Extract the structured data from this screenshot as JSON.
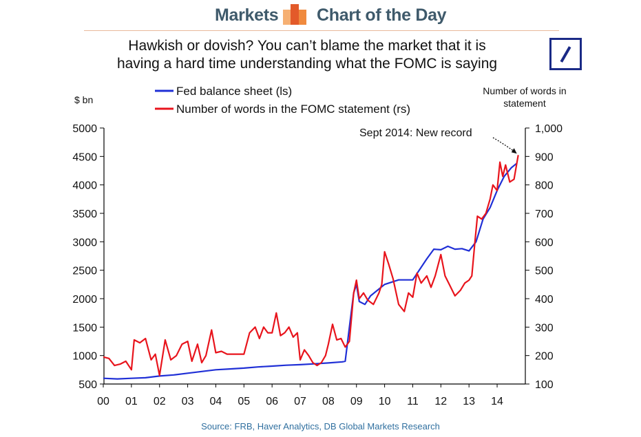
{
  "header": {
    "left_label": "Markets",
    "right_label": "Chart of the Day",
    "logo_icon": "bar-chart-icon",
    "logo_colors": [
      "#f6b073",
      "#e35a2a",
      "#f08a3e"
    ]
  },
  "chart_data": {
    "type": "line",
    "title_lines": [
      "Hawkish or dovish? You can’t blame the market that it is",
      "having a hard time understanding what the FOMC is saying"
    ],
    "source": "Source: FRB, Haver Analytics, DB Global Markets Research",
    "left_axis": {
      "label": "$ bn",
      "range": [
        500,
        5000
      ],
      "ticks": [
        "5000",
        "4500",
        "4000",
        "3500",
        "3000",
        "2500",
        "2000",
        "1500",
        "1000",
        "500"
      ]
    },
    "right_axis": {
      "label_lines": [
        "Number of words in",
        "statement"
      ],
      "range": [
        100,
        1000
      ],
      "ticks": [
        "1,000",
        "900",
        "800",
        "700",
        "600",
        "500",
        "400",
        "300",
        "200",
        "100"
      ]
    },
    "x_axis": {
      "range": [
        2000,
        2015
      ],
      "ticks": [
        "00",
        "01",
        "02",
        "03",
        "04",
        "05",
        "06",
        "07",
        "08",
        "09",
        "10",
        "11",
        "12",
        "13",
        "14"
      ]
    },
    "legend": [
      "Fed balance sheet (ls)",
      "Number of words in the FOMC statement (rs)"
    ],
    "annotation": "Sept 2014: New record",
    "series": [
      {
        "name": "Fed balance sheet (ls)",
        "axis": "left",
        "color": "#1f2fd6",
        "points": [
          [
            2000.0,
            600
          ],
          [
            2000.5,
            590
          ],
          [
            2001.0,
            600
          ],
          [
            2001.5,
            610
          ],
          [
            2002.0,
            640
          ],
          [
            2002.5,
            660
          ],
          [
            2003.0,
            690
          ],
          [
            2003.5,
            720
          ],
          [
            2004.0,
            750
          ],
          [
            2004.5,
            765
          ],
          [
            2005.0,
            780
          ],
          [
            2005.5,
            800
          ],
          [
            2006.0,
            815
          ],
          [
            2006.5,
            830
          ],
          [
            2007.0,
            840
          ],
          [
            2007.5,
            855
          ],
          [
            2008.0,
            870
          ],
          [
            2008.5,
            890
          ],
          [
            2008.6,
            900
          ],
          [
            2008.75,
            1500
          ],
          [
            2008.9,
            2100
          ],
          [
            2009.0,
            2250
          ],
          [
            2009.1,
            1950
          ],
          [
            2009.3,
            1900
          ],
          [
            2009.5,
            2050
          ],
          [
            2010.0,
            2250
          ],
          [
            2010.5,
            2330
          ],
          [
            2011.0,
            2330
          ],
          [
            2011.5,
            2700
          ],
          [
            2011.75,
            2870
          ],
          [
            2012.0,
            2860
          ],
          [
            2012.25,
            2920
          ],
          [
            2012.5,
            2870
          ],
          [
            2012.75,
            2880
          ],
          [
            2013.0,
            2840
          ],
          [
            2013.25,
            3000
          ],
          [
            2013.5,
            3400
          ],
          [
            2013.75,
            3600
          ],
          [
            2014.0,
            3900
          ],
          [
            2014.25,
            4150
          ],
          [
            2014.5,
            4300
          ],
          [
            2014.7,
            4380
          ]
        ]
      },
      {
        "name": "Number of words in the FOMC statement (rs)",
        "axis": "right",
        "color": "#e8141c",
        "points": [
          [
            2000.0,
            195
          ],
          [
            2000.2,
            190
          ],
          [
            2000.4,
            165
          ],
          [
            2000.6,
            170
          ],
          [
            2000.8,
            180
          ],
          [
            2001.0,
            150
          ],
          [
            2001.1,
            255
          ],
          [
            2001.3,
            245
          ],
          [
            2001.5,
            260
          ],
          [
            2001.7,
            185
          ],
          [
            2001.85,
            205
          ],
          [
            2002.0,
            130
          ],
          [
            2002.2,
            255
          ],
          [
            2002.4,
            185
          ],
          [
            2002.6,
            200
          ],
          [
            2002.8,
            240
          ],
          [
            2003.0,
            250
          ],
          [
            2003.15,
            180
          ],
          [
            2003.35,
            240
          ],
          [
            2003.5,
            175
          ],
          [
            2003.65,
            200
          ],
          [
            2003.85,
            290
          ],
          [
            2004.0,
            210
          ],
          [
            2004.2,
            215
          ],
          [
            2004.4,
            205
          ],
          [
            2004.6,
            205
          ],
          [
            2004.8,
            205
          ],
          [
            2005.0,
            205
          ],
          [
            2005.2,
            280
          ],
          [
            2005.4,
            300
          ],
          [
            2005.55,
            260
          ],
          [
            2005.7,
            300
          ],
          [
            2005.85,
            280
          ],
          [
            2006.0,
            280
          ],
          [
            2006.15,
            350
          ],
          [
            2006.3,
            270
          ],
          [
            2006.45,
            280
          ],
          [
            2006.6,
            300
          ],
          [
            2006.75,
            265
          ],
          [
            2006.9,
            280
          ],
          [
            2007.0,
            185
          ],
          [
            2007.15,
            220
          ],
          [
            2007.3,
            200
          ],
          [
            2007.45,
            175
          ],
          [
            2007.6,
            165
          ],
          [
            2007.75,
            175
          ],
          [
            2007.9,
            200
          ],
          [
            2008.0,
            240
          ],
          [
            2008.15,
            310
          ],
          [
            2008.3,
            255
          ],
          [
            2008.45,
            260
          ],
          [
            2008.6,
            230
          ],
          [
            2008.75,
            250
          ],
          [
            2008.9,
            420
          ],
          [
            2009.0,
            465
          ],
          [
            2009.1,
            400
          ],
          [
            2009.25,
            420
          ],
          [
            2009.4,
            395
          ],
          [
            2009.6,
            380
          ],
          [
            2009.8,
            420
          ],
          [
            2009.9,
            450
          ],
          [
            2010.0,
            565
          ],
          [
            2010.15,
            520
          ],
          [
            2010.3,
            470
          ],
          [
            2010.5,
            380
          ],
          [
            2010.7,
            355
          ],
          [
            2010.85,
            420
          ],
          [
            2011.0,
            405
          ],
          [
            2011.15,
            490
          ],
          [
            2011.3,
            455
          ],
          [
            2011.5,
            480
          ],
          [
            2011.65,
            440
          ],
          [
            2011.8,
            480
          ],
          [
            2012.0,
            555
          ],
          [
            2012.15,
            480
          ],
          [
            2012.3,
            450
          ],
          [
            2012.5,
            410
          ],
          [
            2012.7,
            430
          ],
          [
            2012.85,
            455
          ],
          [
            2013.0,
            465
          ],
          [
            2013.1,
            480
          ],
          [
            2013.2,
            590
          ],
          [
            2013.3,
            690
          ],
          [
            2013.45,
            680
          ],
          [
            2013.6,
            700
          ],
          [
            2013.75,
            750
          ],
          [
            2013.85,
            800
          ],
          [
            2014.0,
            780
          ],
          [
            2014.1,
            880
          ],
          [
            2014.2,
            830
          ],
          [
            2014.3,
            870
          ],
          [
            2014.45,
            810
          ],
          [
            2014.6,
            820
          ],
          [
            2014.75,
            905
          ]
        ]
      }
    ]
  }
}
